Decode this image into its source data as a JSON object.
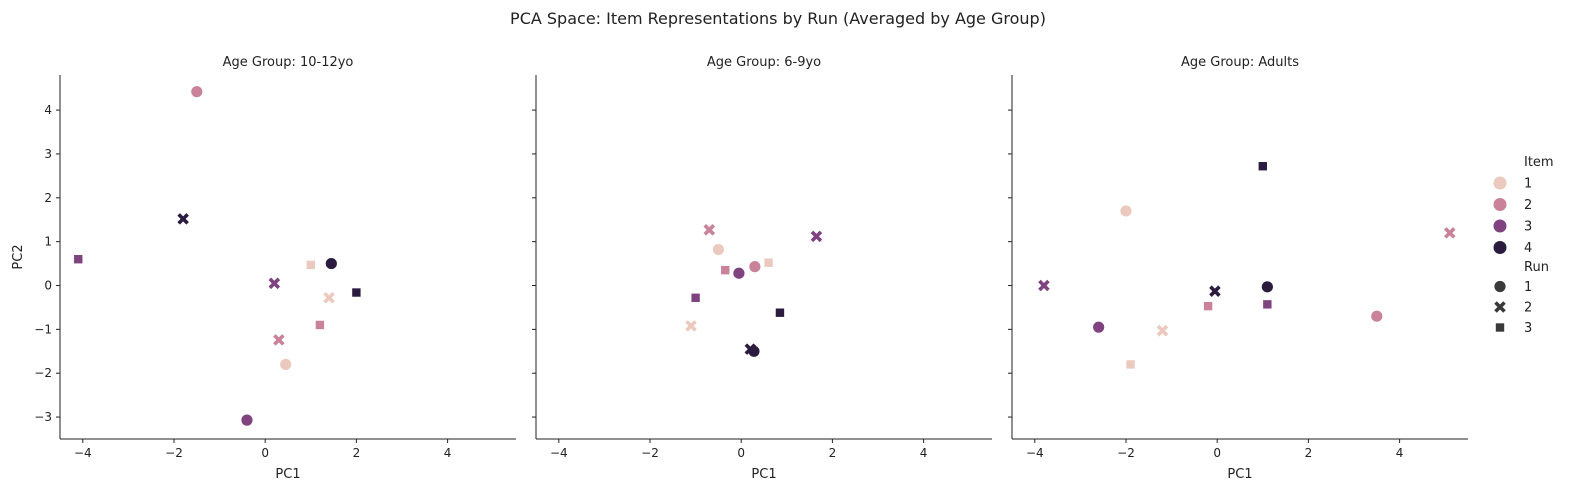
{
  "figure": {
    "title": "PCA Space: Item Representations by Run (Averaged by Age Group)"
  },
  "legend": {
    "item_title": "Item",
    "item_entries": [
      {
        "label": "1",
        "color": "#ecc9bf"
      },
      {
        "label": "2",
        "color": "#c98299"
      },
      {
        "label": "3",
        "color": "#7f437f"
      },
      {
        "label": "4",
        "color": "#2b1c3f"
      }
    ],
    "run_title": "Run",
    "run_entries": [
      {
        "label": "1",
        "marker": "circle"
      },
      {
        "label": "2",
        "marker": "x"
      },
      {
        "label": "3",
        "marker": "square"
      }
    ],
    "placement": "right"
  },
  "chart_data": [
    {
      "type": "scatter",
      "title": "Age Group: 10-12yo",
      "xlabel": "PC1",
      "ylabel": "PC2",
      "xlim": [
        -4.5,
        5.5
      ],
      "ylim": [
        -3.5,
        4.8
      ],
      "xticks": [
        "-4",
        "-2",
        "0",
        "2",
        "4"
      ],
      "yticks": [
        "-3",
        "-2",
        "-1",
        "0",
        "1",
        "2",
        "3",
        "4"
      ],
      "grid": false,
      "points": [
        {
          "item": 1,
          "run": 1,
          "x": 0.45,
          "y": -1.8
        },
        {
          "item": 2,
          "run": 1,
          "x": -1.5,
          "y": 4.42
        },
        {
          "item": 3,
          "run": 1,
          "x": -0.4,
          "y": -3.07
        },
        {
          "item": 4,
          "run": 1,
          "x": 1.45,
          "y": 0.5
        },
        {
          "item": 1,
          "run": 2,
          "x": 1.4,
          "y": -0.28
        },
        {
          "item": 2,
          "run": 2,
          "x": 0.3,
          "y": -1.24
        },
        {
          "item": 3,
          "run": 2,
          "x": 0.2,
          "y": 0.05
        },
        {
          "item": 4,
          "run": 2,
          "x": -1.8,
          "y": 1.52
        },
        {
          "item": 1,
          "run": 3,
          "x": 1.0,
          "y": 0.47
        },
        {
          "item": 2,
          "run": 3,
          "x": 1.2,
          "y": -0.9
        },
        {
          "item": 3,
          "run": 3,
          "x": -4.1,
          "y": 0.6
        },
        {
          "item": 4,
          "run": 3,
          "x": 2.0,
          "y": -0.16
        }
      ]
    },
    {
      "type": "scatter",
      "title": "Age Group: 6-9yo",
      "xlabel": "PC1",
      "ylabel": "",
      "xlim": [
        -4.5,
        5.5
      ],
      "ylim": [
        -3.5,
        4.8
      ],
      "xticks": [
        "-4",
        "-2",
        "0",
        "2",
        "4"
      ],
      "yticks": [],
      "grid": false,
      "points": [
        {
          "item": 1,
          "run": 1,
          "x": -0.5,
          "y": 0.82
        },
        {
          "item": 2,
          "run": 1,
          "x": 0.3,
          "y": 0.43
        },
        {
          "item": 3,
          "run": 1,
          "x": -0.05,
          "y": 0.28
        },
        {
          "item": 4,
          "run": 1,
          "x": 0.28,
          "y": -1.5
        },
        {
          "item": 1,
          "run": 2,
          "x": -1.1,
          "y": -0.92
        },
        {
          "item": 2,
          "run": 2,
          "x": -0.7,
          "y": 1.27
        },
        {
          "item": 3,
          "run": 2,
          "x": 1.65,
          "y": 1.12
        },
        {
          "item": 4,
          "run": 2,
          "x": 0.2,
          "y": -1.45
        },
        {
          "item": 1,
          "run": 3,
          "x": 0.6,
          "y": 0.52
        },
        {
          "item": 2,
          "run": 3,
          "x": -0.35,
          "y": 0.35
        },
        {
          "item": 3,
          "run": 3,
          "x": -1.0,
          "y": -0.28
        },
        {
          "item": 4,
          "run": 3,
          "x": 0.85,
          "y": -0.62
        }
      ]
    },
    {
      "type": "scatter",
      "title": "Age Group: Adults",
      "xlabel": "PC1",
      "ylabel": "",
      "xlim": [
        -4.5,
        5.5
      ],
      "ylim": [
        -3.5,
        4.8
      ],
      "xticks": [
        "-4",
        "-2",
        "0",
        "2",
        "4"
      ],
      "yticks": [],
      "grid": false,
      "points": [
        {
          "item": 1,
          "run": 1,
          "x": -2.0,
          "y": 1.7
        },
        {
          "item": 2,
          "run": 1,
          "x": 3.5,
          "y": -0.7
        },
        {
          "item": 3,
          "run": 1,
          "x": -2.6,
          "y": -0.95
        },
        {
          "item": 4,
          "run": 1,
          "x": 1.1,
          "y": -0.03
        },
        {
          "item": 1,
          "run": 2,
          "x": -1.2,
          "y": -1.03
        },
        {
          "item": 2,
          "run": 2,
          "x": 5.1,
          "y": 1.2
        },
        {
          "item": 3,
          "run": 2,
          "x": -3.8,
          "y": 0.0
        },
        {
          "item": 4,
          "run": 2,
          "x": -0.05,
          "y": -0.13
        },
        {
          "item": 1,
          "run": 3,
          "x": -1.9,
          "y": -1.8
        },
        {
          "item": 2,
          "run": 3,
          "x": -0.2,
          "y": -0.47
        },
        {
          "item": 3,
          "run": 3,
          "x": 1.1,
          "y": -0.43
        },
        {
          "item": 4,
          "run": 3,
          "x": 1.0,
          "y": 2.72
        }
      ]
    }
  ]
}
